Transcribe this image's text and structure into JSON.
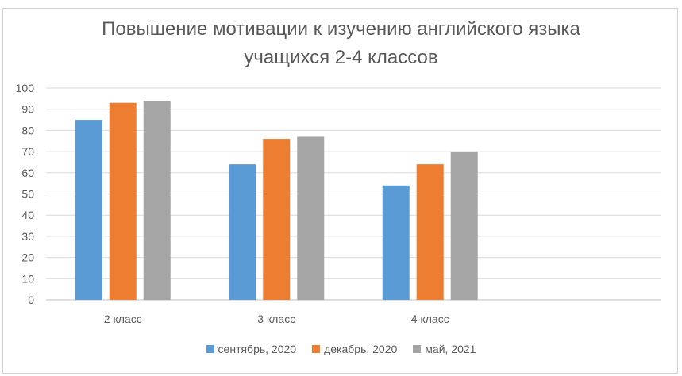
{
  "chart_data": {
    "type": "bar",
    "title_lines": [
      "Повышение мотивации к изучению английского языка",
      "учащихся 2-4 классов"
    ],
    "categories": [
      "2 класс",
      "3 класс",
      "4 класс",
      ""
    ],
    "series": [
      {
        "name": "сентябрь, 2020",
        "values": [
          85,
          64,
          54,
          null
        ],
        "color": "#5b9bd5"
      },
      {
        "name": "декабрь, 2020",
        "values": [
          93,
          76,
          64,
          null
        ],
        "color": "#ed7d31"
      },
      {
        "name": "май, 2021",
        "values": [
          94,
          77,
          70,
          null
        ],
        "color": "#a5a5a5"
      }
    ],
    "yticks": [
      0,
      10,
      20,
      30,
      40,
      50,
      60,
      70,
      80,
      90,
      100
    ],
    "ylim": [
      0,
      100
    ],
    "grid": true,
    "legend_position": "bottom"
  }
}
